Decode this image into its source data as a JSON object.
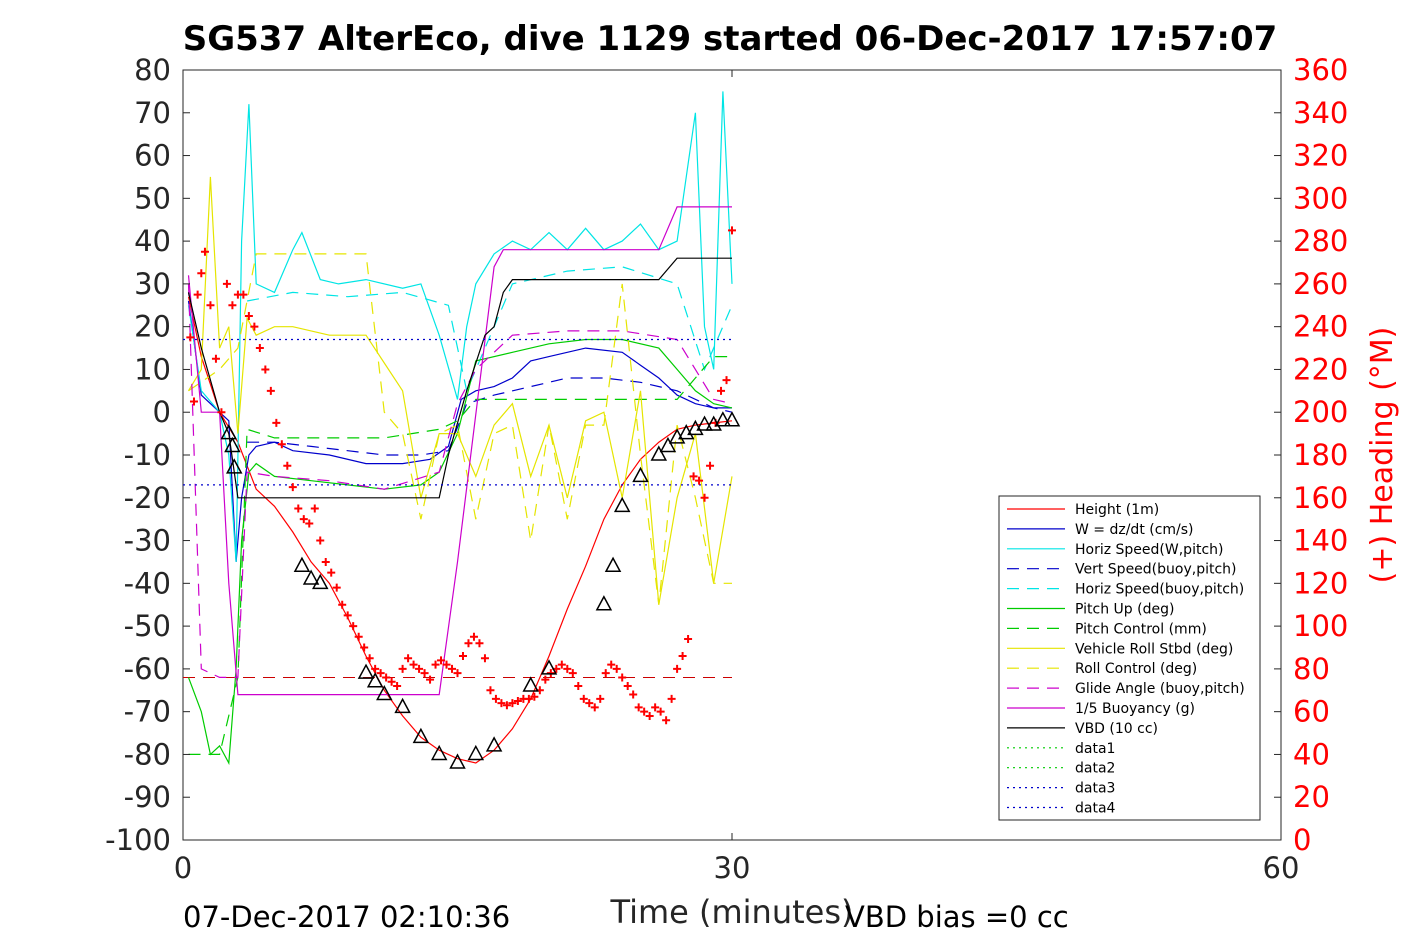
{
  "chart_data": {
    "type": "line",
    "title": "SG537 AlterEco, dive 1129 started 06-Dec-2017 17:57:07",
    "xlabel": "Time (minutes)",
    "ylabel_right": "(+) Heading (°M)",
    "xlim": [
      0,
      60
    ],
    "ylim": [
      -100,
      80
    ],
    "ylim_right": [
      0,
      360
    ],
    "x_ticks": [
      "0",
      "30",
      "60"
    ],
    "y_ticks": [
      "80",
      "70",
      "60",
      "50",
      "40",
      "30",
      "20",
      "10",
      "0",
      "-10",
      "-20",
      "-30",
      "-40",
      "-50",
      "-60",
      "-70",
      "-80",
      "-90",
      "-100"
    ],
    "y_ticks_right": [
      "360",
      "340",
      "320",
      "300",
      "280",
      "260",
      "240",
      "220",
      "200",
      "180",
      "160",
      "140",
      "120",
      "100",
      "80",
      "60",
      "40",
      "20",
      "0"
    ],
    "footer_left": "07-Dec-2017 02:10:36",
    "footer_right": "VBD bias =0 cc",
    "legend_position": "lower-right",
    "grid": false,
    "series": [
      {
        "name": "Height (1m)",
        "color": "#ff0000",
        "style": "solid",
        "x": [
          0.3,
          1.0,
          2.0,
          3.0,
          4.0,
          5.0,
          6.0,
          7.0,
          8.0,
          9.0,
          10.0,
          11.0,
          12.0,
          13.0,
          14.0,
          15.0,
          16.0,
          17.0,
          18.0,
          19.0,
          20.0,
          21.0,
          22.0,
          23.0,
          24.0,
          25.0,
          26.0,
          27.0,
          28.0,
          29.0,
          30.0
        ],
        "y": [
          27,
          13,
          0,
          -7,
          -18,
          -22,
          -28,
          -35,
          -40,
          -48,
          -57,
          -65,
          -71,
          -76,
          -79,
          -81,
          -82,
          -79,
          -74,
          -67,
          -57,
          -46,
          -36,
          -25,
          -17,
          -11,
          -7,
          -4,
          -3,
          -2.5,
          -2
        ]
      },
      {
        "name": "W = dz/dt (cm/s)",
        "color": "#0000cc",
        "style": "solid",
        "x": [
          0.3,
          1.0,
          2.0,
          2.5,
          2.9,
          3.2,
          3.6,
          4.0,
          5.0,
          6.0,
          8.0,
          10.0,
          12.0,
          13.5,
          14.5,
          15.2,
          16.0,
          17.0,
          18.0,
          19.0,
          20.0,
          22.0,
          24.0,
          25.0,
          26.0,
          27.0,
          28.0,
          29.0,
          30.0
        ],
        "y": [
          26,
          4,
          0,
          -2,
          -35,
          -20,
          -10,
          -8,
          -7,
          -9,
          -10,
          -12,
          -12,
          -11,
          -8,
          3,
          5,
          6,
          8,
          12,
          13,
          15,
          14,
          11,
          8,
          4,
          2,
          1,
          1
        ]
      },
      {
        "name": "Horiz Speed(W,pitch)",
        "color": "#00e5e5",
        "style": "solid",
        "x": [
          0.3,
          1.0,
          2.0,
          2.5,
          2.9,
          3.2,
          3.6,
          4.0,
          5.0,
          6.0,
          6.5,
          7.5,
          8.5,
          10.0,
          12.0,
          13.0,
          14.0,
          15.0,
          15.5,
          16.0,
          17.0,
          18.0,
          19.0,
          20.0,
          21.0,
          22.0,
          23.0,
          24.0,
          25.0,
          26.0,
          27.0,
          28.0,
          28.5,
          29.0,
          29.5,
          30.0
        ],
        "y": [
          25,
          5,
          0,
          -10,
          -35,
          40,
          72,
          30,
          28,
          38,
          42,
          31,
          30,
          31,
          29,
          30,
          18,
          3,
          20,
          30,
          37,
          40,
          38,
          42,
          38,
          43,
          38,
          40,
          44,
          38,
          40,
          70,
          20,
          10,
          75,
          30
        ]
      },
      {
        "name": "Vert Speed(buoy,pitch)",
        "color": "#0000cc",
        "style": "dashed",
        "x": [
          3.5,
          5.0,
          7.0,
          9.0,
          11.0,
          13.0,
          14.5,
          15.5,
          17.0,
          19.0,
          21.0,
          23.0,
          25.0,
          27.0,
          29.0,
          30.0
        ],
        "y": [
          -7,
          -7,
          -8,
          -9,
          -10,
          -10,
          -9,
          2,
          4,
          6,
          8,
          8,
          7,
          5,
          1,
          0
        ]
      },
      {
        "name": "Horiz Speed(buoy,pitch)",
        "color": "#00e5e5",
        "style": "dashed",
        "x": [
          3.5,
          6.0,
          9.0,
          12.0,
          14.5,
          15.5,
          18.0,
          21.0,
          24.0,
          27.0,
          28.5,
          30.0
        ],
        "y": [
          26,
          28,
          27,
          28,
          25,
          5,
          30,
          33,
          34,
          30,
          10,
          25
        ]
      },
      {
        "name": "Pitch Up (deg)",
        "color": "#00cc00",
        "style": "solid",
        "x": [
          0.3,
          1.0,
          1.5,
          2.0,
          2.5,
          2.9,
          3.2,
          3.6,
          4.0,
          5.0,
          7.0,
          9.0,
          11.0,
          13.0,
          14.0,
          15.0,
          16.0,
          18.0,
          20.0,
          22.0,
          24.0,
          26.0,
          27.0,
          28.0,
          29.0,
          30.0
        ],
        "y": [
          -62,
          -70,
          -80,
          -78,
          -82,
          -60,
          -30,
          -14,
          -12,
          -15,
          -16,
          -17,
          -18,
          -17,
          -14,
          -5,
          12,
          14,
          16,
          17,
          17,
          15,
          10,
          5,
          2,
          1
        ]
      },
      {
        "name": "Pitch Control (mm)",
        "color": "#00cc00",
        "style": "dashed",
        "x": [
          0.3,
          1.0,
          2.0,
          3.0,
          3.5,
          5.0,
          8.0,
          11.0,
          14.0,
          15.0,
          16.0,
          18.0,
          21.0,
          24.0,
          27.0,
          29.0,
          30.0
        ],
        "y": [
          -80,
          -80,
          -80,
          -62,
          -4,
          -6,
          -6,
          -6,
          -4,
          -2,
          3,
          3,
          3,
          3,
          3,
          13,
          13
        ]
      },
      {
        "name": "Vehicle Roll Stbd (deg)",
        "color": "#e5e500",
        "style": "solid",
        "x": [
          0.3,
          1.0,
          1.5,
          2.0,
          2.5,
          3.0,
          3.5,
          4.0,
          5.0,
          6.0,
          7.0,
          8.0,
          10.0,
          12.0,
          13.0,
          14.0,
          15.0,
          16.0,
          17.0,
          18.0,
          19.0,
          20.0,
          21.0,
          22.0,
          23.0,
          24.0,
          25.0,
          26.0,
          27.0,
          28.0,
          29.0,
          30.0
        ],
        "y": [
          5,
          10,
          55,
          15,
          20,
          -5,
          22,
          18,
          20,
          20,
          19,
          18,
          18,
          5,
          -20,
          -5,
          -5,
          -15,
          -3,
          2,
          -15,
          -3,
          -20,
          -2,
          0,
          -20,
          5,
          -45,
          -20,
          -5,
          -40,
          -15
        ]
      },
      {
        "name": "Roll Control (deg)",
        "color": "#e5e500",
        "style": "dashed",
        "x": [
          0.3,
          2.0,
          3.0,
          4.0,
          7.0,
          10.0,
          11.0,
          12.0,
          13.0,
          14.0,
          15.0,
          16.0,
          17.0,
          18.0,
          19.0,
          20.0,
          21.0,
          22.0,
          23.0,
          24.0,
          25.0,
          26.0,
          27.0,
          28.0,
          29.0,
          30.0
        ],
        "y": [
          5,
          10,
          15,
          37,
          37,
          37,
          0,
          -5,
          -25,
          -5,
          -3,
          -25,
          -5,
          -3,
          -30,
          -3,
          -25,
          -3,
          -3,
          30,
          -10,
          -45,
          -3,
          -20,
          -40,
          -40
        ]
      },
      {
        "name": "Glide Angle (buoy,pitch)",
        "color": "#cc00cc",
        "style": "dashed",
        "x": [
          0.3,
          1.0,
          2.0,
          3.0,
          3.5,
          5.0,
          8.0,
          11.0,
          14.0,
          15.0,
          16.0,
          18.0,
          21.0,
          24.0,
          27.0,
          29.0,
          30.0
        ],
        "y": [
          30,
          -60,
          -62,
          -62,
          -14,
          -15,
          -16,
          -18,
          -14,
          2,
          10,
          18,
          19,
          19,
          17,
          3,
          2
        ]
      },
      {
        "name": "1/5 Buoyancy (g)",
        "color": "#cc00cc",
        "style": "solid",
        "x": [
          0.3,
          1.0,
          2.0,
          2.5,
          3.0,
          3.5,
          5.0,
          10.0,
          13.0,
          14.0,
          15.0,
          17.0,
          17.5,
          19.0,
          23.0,
          26.0,
          27.0,
          29.0,
          30.0
        ],
        "y": [
          32,
          0,
          0,
          -40,
          -66,
          -66,
          -66,
          -66,
          -66,
          -66,
          -35,
          34,
          38,
          38,
          38,
          38,
          48,
          48,
          48
        ]
      },
      {
        "name": "VBD (10 cc)",
        "color": "#000000",
        "style": "solid",
        "x": [
          0.3,
          1.0,
          2.0,
          2.5,
          3.0,
          3.5,
          5.0,
          8.0,
          11.0,
          13.0,
          14.0,
          14.5,
          15.5,
          16.5,
          17.0,
          17.5,
          18.0,
          20.0,
          23.0,
          26.0,
          27.0,
          28.0,
          30.0
        ],
        "y": [
          28,
          15,
          0,
          -5,
          -20,
          -20,
          -20,
          -20,
          -20,
          -20,
          -20,
          -10,
          5,
          18,
          20,
          28,
          31,
          31,
          31,
          31,
          36,
          36,
          36
        ]
      },
      {
        "name": "data1",
        "color": "#00cc00",
        "style": "dotted",
        "x": [],
        "y": []
      },
      {
        "name": "data2",
        "color": "#00cc00",
        "style": "dotted",
        "x": [],
        "y": []
      },
      {
        "name": "data3",
        "color": "#0000cc",
        "style": "dotted",
        "x": [
          0,
          30
        ],
        "y": [
          17,
          17
        ]
      },
      {
        "name": "data4",
        "color": "#0000cc",
        "style": "dotted",
        "x": [
          0,
          30
        ],
        "y": [
          -17,
          -17
        ]
      }
    ],
    "reference_lines": [
      {
        "color": "#cc0000",
        "style": "dashed",
        "y": -62,
        "x": [
          0,
          30
        ]
      }
    ],
    "heading_points": {
      "color": "#ff0000",
      "marker": "plus",
      "x": [
        0.4,
        0.6,
        0.8,
        1.0,
        1.2,
        1.5,
        1.8,
        2.1,
        2.4,
        2.7,
        3.0,
        3.3,
        3.6,
        3.9,
        4.2,
        4.5,
        4.8,
        5.1,
        5.4,
        5.7,
        6.0,
        6.3,
        6.6,
        6.9,
        7.2,
        7.5,
        7.8,
        8.1,
        8.4,
        8.7,
        9.0,
        9.3,
        9.6,
        9.9,
        10.2,
        10.5,
        10.8,
        11.1,
        11.4,
        11.7,
        12.0,
        12.3,
        12.6,
        12.9,
        13.2,
        13.5,
        13.8,
        14.1,
        14.4,
        14.7,
        15.0,
        15.3,
        15.6,
        15.9,
        16.2,
        16.5,
        16.8,
        17.1,
        17.4,
        17.7,
        18.0,
        18.3,
        18.6,
        18.9,
        19.2,
        19.5,
        19.8,
        20.1,
        20.4,
        20.7,
        21.0,
        21.3,
        21.6,
        21.9,
        22.2,
        22.5,
        22.8,
        23.1,
        23.4,
        23.7,
        24.0,
        24.3,
        24.6,
        24.9,
        25.2,
        25.5,
        25.8,
        26.1,
        26.4,
        26.7,
        27.0,
        27.3,
        27.6,
        27.9,
        28.2,
        28.5,
        28.8,
        29.1,
        29.4,
        29.7,
        30.0
      ],
      "y": [
        235,
        205,
        255,
        265,
        275,
        250,
        225,
        200,
        260,
        250,
        255,
        255,
        245,
        240,
        230,
        220,
        210,
        195,
        185,
        175,
        165,
        155,
        150,
        148,
        155,
        140,
        130,
        125,
        118,
        110,
        105,
        100,
        95,
        90,
        85,
        80,
        78,
        76,
        74,
        72,
        80,
        85,
        82,
        80,
        78,
        75,
        82,
        84,
        82,
        80,
        78,
        86,
        92,
        95,
        92,
        85,
        70,
        66,
        64,
        63,
        64,
        65,
        66,
        66,
        67,
        70,
        75,
        78,
        80,
        82,
        80,
        78,
        72,
        66,
        64,
        62,
        66,
        78,
        82,
        80,
        76,
        72,
        68,
        62,
        60,
        58,
        62,
        60,
        56,
        66,
        80,
        86,
        94,
        170,
        168,
        160,
        175,
        195,
        210,
        215,
        285
      ]
    },
    "triangle_markers": {
      "color": "#000000",
      "x": [
        2.5,
        2.7,
        2.8,
        6.5,
        7.0,
        7.5,
        10.0,
        10.5,
        11.0,
        12.0,
        13.0,
        14.0,
        15.0,
        16.0,
        17.0,
        19.0,
        20.0,
        23.0,
        23.5,
        24.0,
        25.0,
        26.0,
        26.5,
        27.0,
        27.5,
        28.0,
        28.5,
        29.0,
        29.5,
        30.0
      ],
      "y": [
        -5,
        -8,
        -13,
        -36,
        -39,
        -40,
        -61,
        -63,
        -66,
        -69,
        -76,
        -80,
        -82,
        -80,
        -78,
        -64,
        -60,
        -45,
        -36,
        -22,
        -15,
        -10,
        -8,
        -6,
        -5,
        -4,
        -3,
        -3,
        -2,
        -2
      ]
    }
  }
}
